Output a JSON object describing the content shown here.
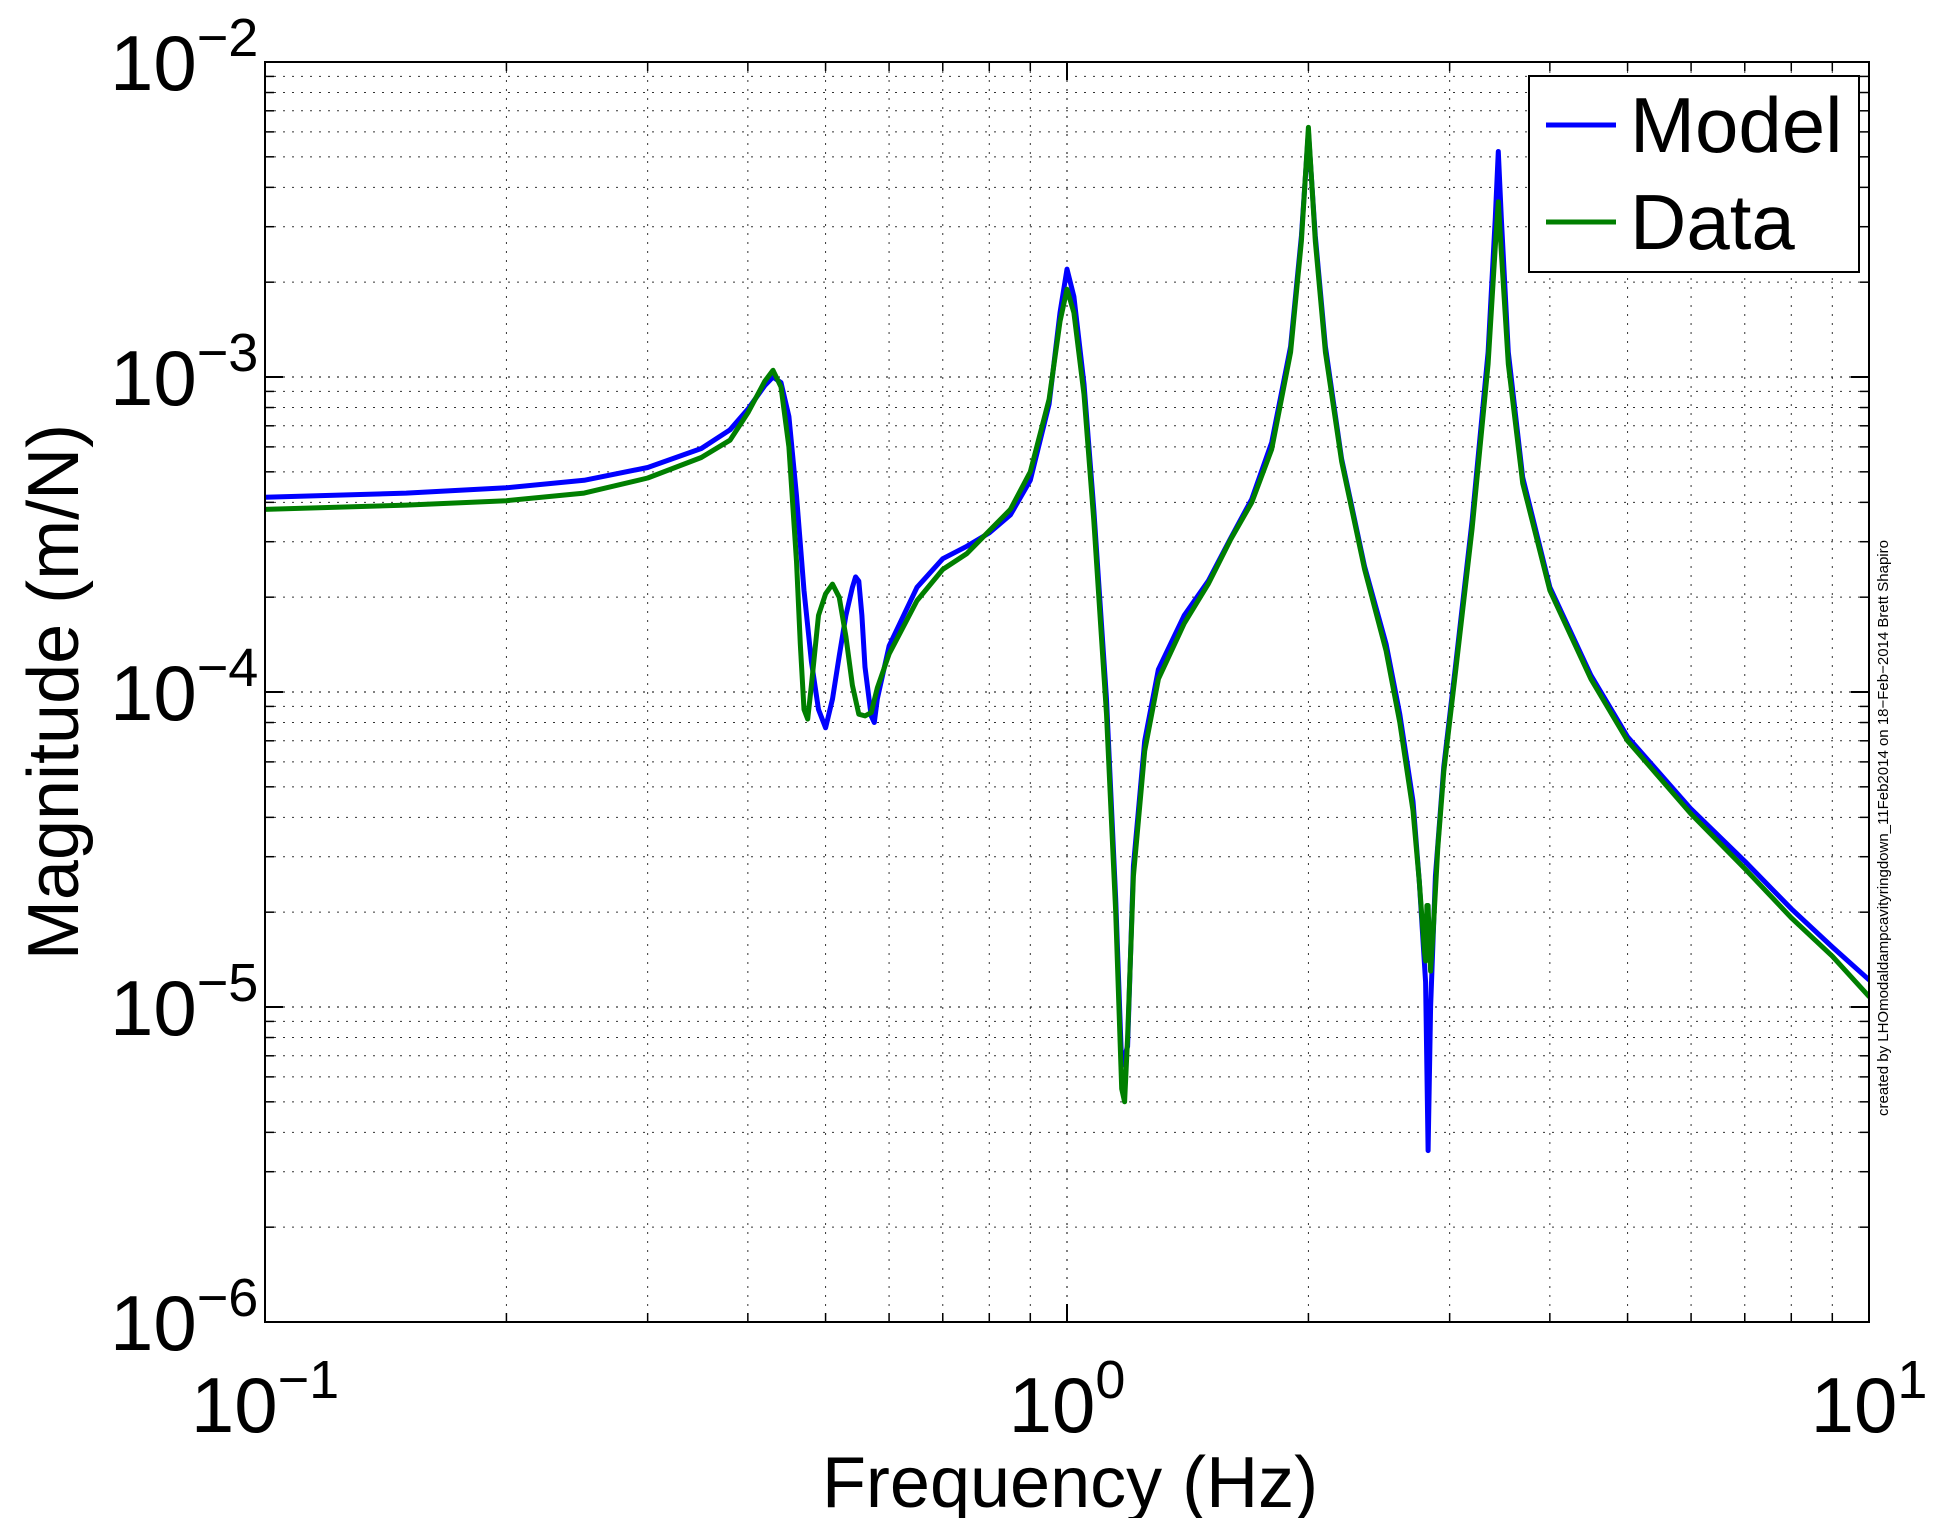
{
  "chart_data": {
    "type": "line",
    "title": "",
    "xlabel": "Frequency (Hz)",
    "ylabel": "Magnitude (m/N)",
    "x_scale": "log",
    "y_scale": "log",
    "xlim": [
      0.1,
      10
    ],
    "ylim": [
      1e-06,
      0.01
    ],
    "grid": true,
    "legend_position": "top-right",
    "x_ticks": [
      {
        "value": 0.1,
        "base": "10",
        "exp": "−1"
      },
      {
        "value": 1,
        "base": "10",
        "exp": "0"
      },
      {
        "value": 10,
        "base": "10",
        "exp": "1"
      }
    ],
    "y_ticks": [
      {
        "value": 0.01,
        "base": "10",
        "exp": "−2"
      },
      {
        "value": 0.001,
        "base": "10",
        "exp": "−3"
      },
      {
        "value": 0.0001,
        "base": "10",
        "exp": "−4"
      },
      {
        "value": 1e-05,
        "base": "10",
        "exp": "−5"
      },
      {
        "value": 1e-06,
        "base": "10",
        "exp": "−6"
      }
    ],
    "annotation": "created by LHOmodaldampcavityringdown_11Feb2014 on 18−Feb−2014 Brett Shapiro",
    "series": [
      {
        "name": "Model",
        "color": "#0000ff",
        "points": [
          [
            0.1,
            0.000415
          ],
          [
            0.15,
            0.000428
          ],
          [
            0.2,
            0.000445
          ],
          [
            0.25,
            0.00047
          ],
          [
            0.3,
            0.000516
          ],
          [
            0.35,
            0.000593
          ],
          [
            0.38,
            0.00068
          ],
          [
            0.4,
            0.00079
          ],
          [
            0.42,
            0.00094
          ],
          [
            0.43,
            0.001
          ],
          [
            0.44,
            0.00096
          ],
          [
            0.45,
            0.00075
          ],
          [
            0.46,
            0.00042
          ],
          [
            0.47,
            0.00021
          ],
          [
            0.48,
            0.000125
          ],
          [
            0.49,
            8.8e-05
          ],
          [
            0.5,
            7.7e-05
          ],
          [
            0.51,
            9.5e-05
          ],
          [
            0.52,
            0.00013
          ],
          [
            0.53,
            0.000175
          ],
          [
            0.54,
            0.000215
          ],
          [
            0.545,
            0.000232
          ],
          [
            0.55,
            0.000225
          ],
          [
            0.555,
            0.000175
          ],
          [
            0.56,
            0.00012
          ],
          [
            0.57,
            8.4e-05
          ],
          [
            0.575,
            8e-05
          ],
          [
            0.58,
            9.5e-05
          ],
          [
            0.6,
            0.00014
          ],
          [
            0.65,
            0.000215
          ],
          [
            0.7,
            0.000265
          ],
          [
            0.75,
            0.00029
          ],
          [
            0.8,
            0.00032
          ],
          [
            0.85,
            0.000365
          ],
          [
            0.9,
            0.00047
          ],
          [
            0.95,
            0.00082
          ],
          [
            0.98,
            0.0016
          ],
          [
            1.0,
            0.0022
          ],
          [
            1.02,
            0.0018
          ],
          [
            1.05,
            0.00095
          ],
          [
            1.08,
            0.00038
          ],
          [
            1.12,
            9.5e-05
          ],
          [
            1.15,
            2.2e-05
          ],
          [
            1.17,
            6.5e-06
          ],
          [
            1.19,
            7.5e-06
          ],
          [
            1.21,
            2.8e-05
          ],
          [
            1.25,
            7e-05
          ],
          [
            1.3,
            0.000118
          ],
          [
            1.4,
            0.000175
          ],
          [
            1.5,
            0.000225
          ],
          [
            1.6,
            0.000308
          ],
          [
            1.7,
            0.00041
          ],
          [
            1.8,
            0.00062
          ],
          [
            1.9,
            0.00125
          ],
          [
            1.96,
            0.0028
          ],
          [
            2.0,
            0.006
          ],
          [
            2.04,
            0.0028
          ],
          [
            2.1,
            0.00125
          ],
          [
            2.2,
            0.00055
          ],
          [
            2.35,
            0.00025
          ],
          [
            2.5,
            0.000142
          ],
          [
            2.6,
            8.5e-05
          ],
          [
            2.7,
            4.5e-05
          ],
          [
            2.75,
            2.5e-05
          ],
          [
            2.8,
            1.2e-05
          ],
          [
            2.82,
            3.5e-06
          ],
          [
            2.84,
            1e-05
          ],
          [
            2.88,
            2.6e-05
          ],
          [
            2.95,
            5.8e-05
          ],
          [
            3.05,
            0.00012
          ],
          [
            3.2,
            0.00035
          ],
          [
            3.35,
            0.0012
          ],
          [
            3.42,
            0.0032
          ],
          [
            3.45,
            0.0052
          ],
          [
            3.48,
            0.0032
          ],
          [
            3.55,
            0.0012
          ],
          [
            3.7,
            0.00048
          ],
          [
            4.0,
            0.000215
          ],
          [
            4.5,
            0.000113
          ],
          [
            5.0,
            7.2e-05
          ],
          [
            6.0,
            4.25e-05
          ],
          [
            7.0,
            2.9e-05
          ],
          [
            8.0,
            2.05e-05
          ],
          [
            9.0,
            1.55e-05
          ],
          [
            10.0,
            1.22e-05
          ]
        ]
      },
      {
        "name": "Data",
        "color": "#007f00",
        "points": [
          [
            0.1,
            0.00038
          ],
          [
            0.15,
            0.000392
          ],
          [
            0.2,
            0.000405
          ],
          [
            0.25,
            0.000428
          ],
          [
            0.3,
            0.000478
          ],
          [
            0.35,
            0.000555
          ],
          [
            0.38,
            0.00063
          ],
          [
            0.4,
            0.00077
          ],
          [
            0.42,
            0.00097
          ],
          [
            0.43,
            0.00105
          ],
          [
            0.44,
            0.00093
          ],
          [
            0.45,
            0.0006
          ],
          [
            0.46,
            0.00026
          ],
          [
            0.465,
            0.000142
          ],
          [
            0.47,
            8.8e-05
          ],
          [
            0.475,
            8.2e-05
          ],
          [
            0.48,
            0.000105
          ],
          [
            0.49,
            0.000175
          ],
          [
            0.5,
            0.000205
          ],
          [
            0.51,
            0.00022
          ],
          [
            0.52,
            0.0002
          ],
          [
            0.53,
            0.00015
          ],
          [
            0.54,
            0.000105
          ],
          [
            0.55,
            8.5e-05
          ],
          [
            0.56,
            8.4e-05
          ],
          [
            0.57,
            8.6e-05
          ],
          [
            0.58,
            0.000103
          ],
          [
            0.6,
            0.000132
          ],
          [
            0.65,
            0.000195
          ],
          [
            0.7,
            0.000245
          ],
          [
            0.75,
            0.000275
          ],
          [
            0.8,
            0.000325
          ],
          [
            0.85,
            0.00038
          ],
          [
            0.9,
            0.0005
          ],
          [
            0.95,
            0.00085
          ],
          [
            0.98,
            0.0015
          ],
          [
            1.0,
            0.0019
          ],
          [
            1.02,
            0.0016
          ],
          [
            1.05,
            0.00088
          ],
          [
            1.08,
            0.00035
          ],
          [
            1.12,
            8.5e-05
          ],
          [
            1.15,
            2e-05
          ],
          [
            1.17,
            5.5e-06
          ],
          [
            1.18,
            5e-06
          ],
          [
            1.19,
            8e-06
          ],
          [
            1.21,
            2.6e-05
          ],
          [
            1.25,
            6.5e-05
          ],
          [
            1.3,
            0.00011
          ],
          [
            1.4,
            0.000165
          ],
          [
            1.5,
            0.00022
          ],
          [
            1.6,
            0.000305
          ],
          [
            1.7,
            0.0004
          ],
          [
            1.8,
            0.00059
          ],
          [
            1.9,
            0.0012
          ],
          [
            1.96,
            0.0027
          ],
          [
            2.0,
            0.0062
          ],
          [
            2.04,
            0.0027
          ],
          [
            2.1,
            0.0012
          ],
          [
            2.2,
            0.00054
          ],
          [
            2.35,
            0.000245
          ],
          [
            2.5,
            0.000135
          ],
          [
            2.6,
            8e-05
          ],
          [
            2.7,
            4.2e-05
          ],
          [
            2.75,
            2.5e-05
          ],
          [
            2.79,
            1.5e-05
          ],
          [
            2.8,
            1.4e-05
          ],
          [
            2.81,
            2.1e-05
          ],
          [
            2.82,
            2.1e-05
          ],
          [
            2.83,
            1.6e-05
          ],
          [
            2.84,
            1.3e-05
          ],
          [
            2.86,
            1.7e-05
          ],
          [
            2.9,
            3.2e-05
          ],
          [
            2.95,
            5.6e-05
          ],
          [
            3.05,
            0.000115
          ],
          [
            3.2,
            0.00033
          ],
          [
            3.35,
            0.0011
          ],
          [
            3.42,
            0.0026
          ],
          [
            3.45,
            0.0036
          ],
          [
            3.48,
            0.0025
          ],
          [
            3.55,
            0.0011
          ],
          [
            3.7,
            0.00046
          ],
          [
            4.0,
            0.00021
          ],
          [
            4.5,
            0.00011
          ],
          [
            5.0,
            7e-05
          ],
          [
            6.0,
            4.1e-05
          ],
          [
            7.0,
            2.75e-05
          ],
          [
            8.0,
            1.92e-05
          ],
          [
            9.0,
            1.45e-05
          ],
          [
            10.0,
            1.08e-05
          ]
        ]
      }
    ]
  }
}
